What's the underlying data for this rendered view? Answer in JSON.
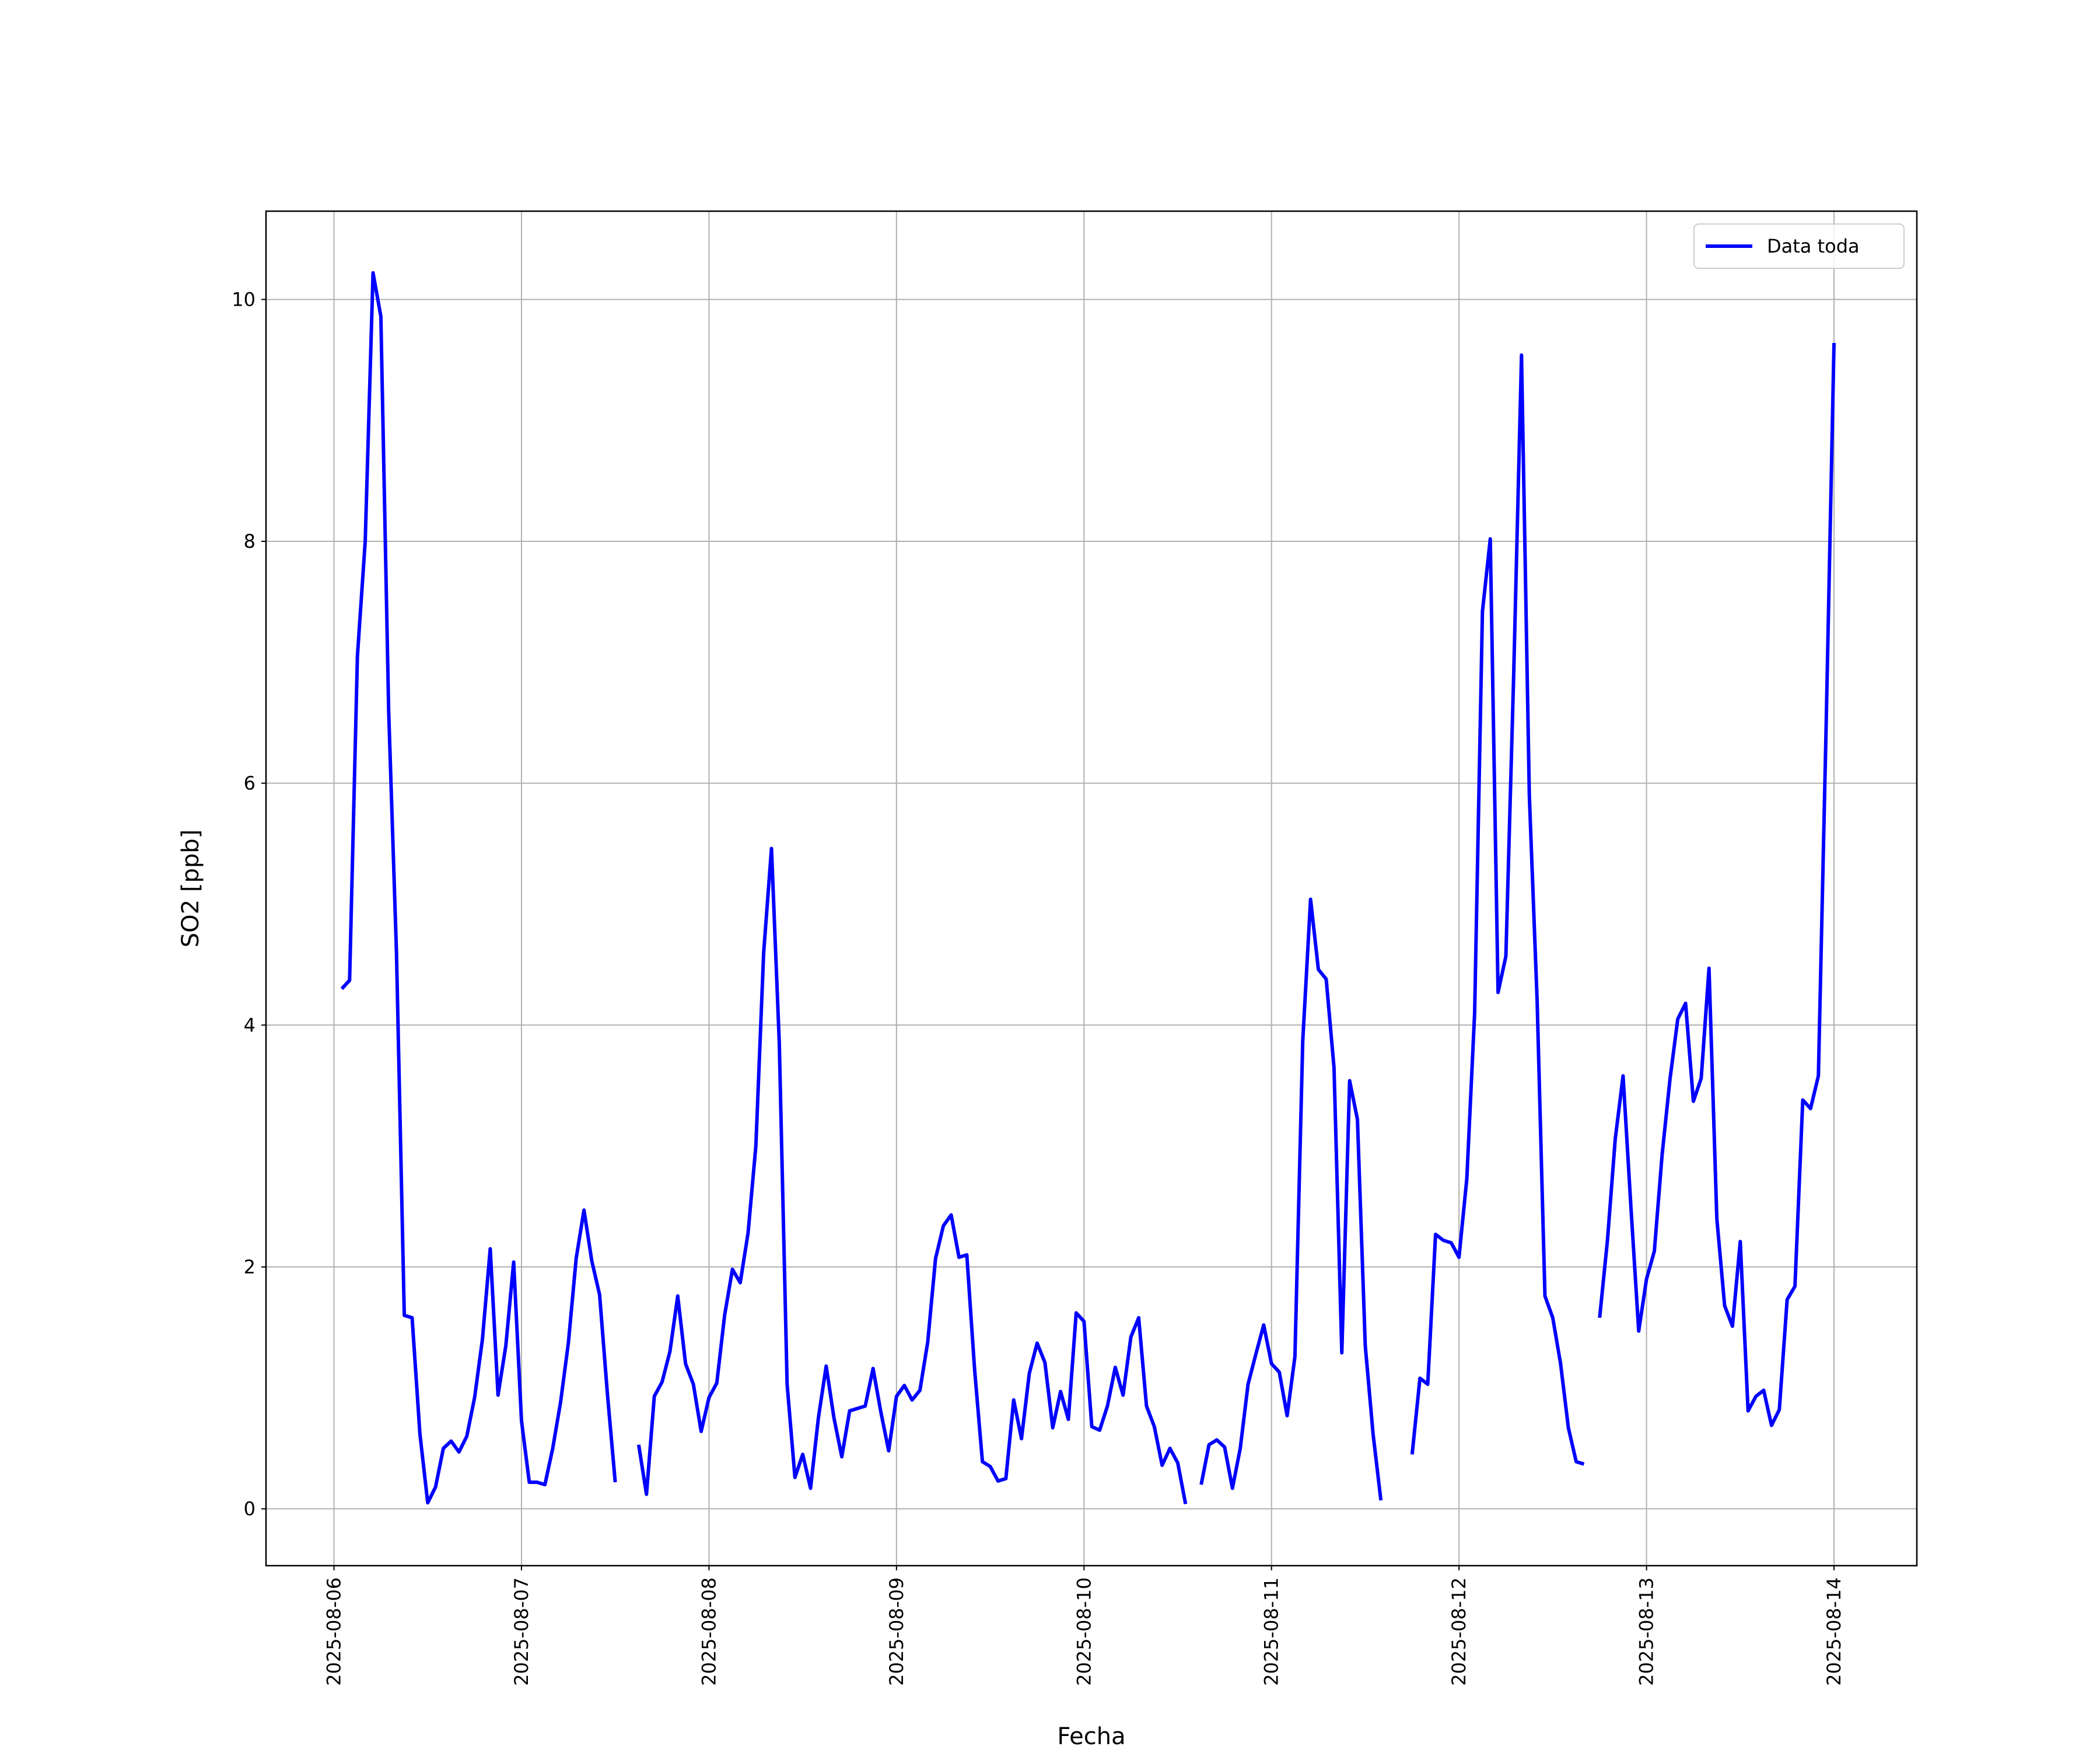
{
  "chart_data": {
    "type": "line",
    "x_label": "Fecha",
    "y_label": "SO2 [ppb]",
    "x": [
      "2025-08-06 01:00",
      "2025-08-06 02:00",
      "2025-08-06 03:00",
      "2025-08-06 04:00",
      "2025-08-06 05:00",
      "2025-08-06 06:00",
      "2025-08-06 07:00",
      "2025-08-06 08:00",
      "2025-08-06 09:00",
      "2025-08-06 10:00",
      "2025-08-06 11:00",
      "2025-08-06 12:00",
      "2025-08-06 13:00",
      "2025-08-06 14:00",
      "2025-08-06 15:00",
      "2025-08-06 16:00",
      "2025-08-06 17:00",
      "2025-08-06 18:00",
      "2025-08-06 19:00",
      "2025-08-06 20:00",
      "2025-08-06 21:00",
      "2025-08-06 22:00",
      "2025-08-06 23:00",
      "2025-08-07 00:00",
      "2025-08-07 01:00",
      "2025-08-07 02:00",
      "2025-08-07 03:00",
      "2025-08-07 04:00",
      "2025-08-07 05:00",
      "2025-08-07 06:00",
      "2025-08-07 07:00",
      "2025-08-07 08:00",
      "2025-08-07 09:00",
      "2025-08-07 10:00",
      "2025-08-07 11:00",
      "2025-08-07 12:00",
      "2025-08-07 13:00",
      "2025-08-07 14:00",
      "2025-08-07 15:00",
      "2025-08-07 16:00",
      "2025-08-07 17:00",
      "2025-08-07 18:00",
      "2025-08-07 19:00",
      "2025-08-07 20:00",
      "2025-08-07 21:00",
      "2025-08-07 22:00",
      "2025-08-07 23:00",
      "2025-08-08 00:00",
      "2025-08-08 01:00",
      "2025-08-08 02:00",
      "2025-08-08 03:00",
      "2025-08-08 04:00",
      "2025-08-08 05:00",
      "2025-08-08 06:00",
      "2025-08-08 07:00",
      "2025-08-08 08:00",
      "2025-08-08 09:00",
      "2025-08-08 10:00",
      "2025-08-08 11:00",
      "2025-08-08 12:00",
      "2025-08-08 13:00",
      "2025-08-08 14:00",
      "2025-08-08 15:00",
      "2025-08-08 16:00",
      "2025-08-08 17:00",
      "2025-08-08 18:00",
      "2025-08-08 19:00",
      "2025-08-08 20:00",
      "2025-08-08 21:00",
      "2025-08-08 22:00",
      "2025-08-08 23:00",
      "2025-08-09 00:00",
      "2025-08-09 01:00",
      "2025-08-09 02:00",
      "2025-08-09 03:00",
      "2025-08-09 04:00",
      "2025-08-09 05:00",
      "2025-08-09 06:00",
      "2025-08-09 07:00",
      "2025-08-09 08:00",
      "2025-08-09 09:00",
      "2025-08-09 10:00",
      "2025-08-09 11:00",
      "2025-08-09 12:00",
      "2025-08-09 13:00",
      "2025-08-09 14:00",
      "2025-08-09 15:00",
      "2025-08-09 16:00",
      "2025-08-09 17:00",
      "2025-08-09 18:00",
      "2025-08-09 19:00",
      "2025-08-09 20:00",
      "2025-08-09 21:00",
      "2025-08-09 22:00",
      "2025-08-09 23:00",
      "2025-08-10 00:00",
      "2025-08-10 01:00",
      "2025-08-10 02:00",
      "2025-08-10 03:00",
      "2025-08-10 04:00",
      "2025-08-10 05:00",
      "2025-08-10 06:00",
      "2025-08-10 07:00",
      "2025-08-10 08:00",
      "2025-08-10 09:00",
      "2025-08-10 10:00",
      "2025-08-10 11:00",
      "2025-08-10 12:00",
      "2025-08-10 13:00",
      "2025-08-10 14:00",
      "2025-08-10 15:00",
      "2025-08-10 16:00",
      "2025-08-10 17:00",
      "2025-08-10 18:00",
      "2025-08-10 19:00",
      "2025-08-10 20:00",
      "2025-08-10 21:00",
      "2025-08-10 22:00",
      "2025-08-10 23:00",
      "2025-08-11 00:00",
      "2025-08-11 01:00",
      "2025-08-11 02:00",
      "2025-08-11 03:00",
      "2025-08-11 04:00",
      "2025-08-11 05:00",
      "2025-08-11 06:00",
      "2025-08-11 07:00",
      "2025-08-11 08:00",
      "2025-08-11 09:00",
      "2025-08-11 10:00",
      "2025-08-11 11:00",
      "2025-08-11 12:00",
      "2025-08-11 13:00",
      "2025-08-11 14:00",
      "2025-08-11 15:00",
      "2025-08-11 16:00",
      "2025-08-11 17:00",
      "2025-08-11 18:00",
      "2025-08-11 19:00",
      "2025-08-11 20:00",
      "2025-08-11 21:00",
      "2025-08-11 22:00",
      "2025-08-11 23:00",
      "2025-08-12 00:00",
      "2025-08-12 01:00",
      "2025-08-12 02:00",
      "2025-08-12 03:00",
      "2025-08-12 04:00",
      "2025-08-12 05:00",
      "2025-08-12 06:00",
      "2025-08-12 07:00",
      "2025-08-12 08:00",
      "2025-08-12 09:00",
      "2025-08-12 10:00",
      "2025-08-12 11:00",
      "2025-08-12 12:00",
      "2025-08-12 13:00",
      "2025-08-12 14:00",
      "2025-08-12 15:00",
      "2025-08-12 16:00",
      "2025-08-12 17:00",
      "2025-08-12 18:00",
      "2025-08-12 19:00",
      "2025-08-12 20:00",
      "2025-08-12 21:00",
      "2025-08-12 22:00",
      "2025-08-12 23:00",
      "2025-08-13 00:00",
      "2025-08-13 01:00",
      "2025-08-13 02:00",
      "2025-08-13 03:00",
      "2025-08-13 04:00",
      "2025-08-13 05:00",
      "2025-08-13 06:00",
      "2025-08-13 07:00",
      "2025-08-13 08:00",
      "2025-08-13 09:00",
      "2025-08-13 10:00",
      "2025-08-13 11:00",
      "2025-08-13 12:00",
      "2025-08-13 13:00",
      "2025-08-13 14:00",
      "2025-08-13 15:00",
      "2025-08-13 16:00",
      "2025-08-13 17:00",
      "2025-08-13 18:00",
      "2025-08-13 19:00",
      "2025-08-13 20:00",
      "2025-08-13 21:00",
      "2025-08-13 22:00",
      "2025-08-13 23:00",
      "2025-08-14 00:00"
    ],
    "series": [
      {
        "name": "Data toda",
        "color": "#0000ff",
        "values": [
          4.3,
          4.37,
          7.05,
          8.0,
          10.22,
          9.86,
          6.6,
          4.6,
          1.6,
          1.58,
          0.62,
          0.05,
          0.18,
          0.5,
          0.56,
          0.47,
          0.6,
          0.92,
          1.4,
          2.15,
          0.94,
          1.35,
          2.04,
          0.73,
          0.22,
          0.22,
          0.2,
          0.5,
          0.88,
          1.37,
          2.07,
          2.47,
          2.05,
          1.77,
          0.95,
          0.22,
          null,
          null,
          0.53,
          0.12,
          0.93,
          1.05,
          1.3,
          1.76,
          1.2,
          1.03,
          0.64,
          0.92,
          1.04,
          1.6,
          1.98,
          1.87,
          2.28,
          3.0,
          4.6,
          5.46,
          3.85,
          1.03,
          0.26,
          0.45,
          0.17,
          0.75,
          1.18,
          0.75,
          0.43,
          0.81,
          0.83,
          0.85,
          1.16,
          0.8,
          0.48,
          0.93,
          1.02,
          0.9,
          0.98,
          1.38,
          2.07,
          2.34,
          2.43,
          2.08,
          2.1,
          1.15,
          0.39,
          0.35,
          0.23,
          0.25,
          0.9,
          0.58,
          1.12,
          1.37,
          1.21,
          0.67,
          0.97,
          0.74,
          1.62,
          1.55,
          0.68,
          0.65,
          0.85,
          1.17,
          0.94,
          1.42,
          1.58,
          0.85,
          0.68,
          0.36,
          0.5,
          0.38,
          0.04,
          null,
          0.2,
          0.53,
          0.57,
          0.51,
          0.17,
          0.5,
          1.03,
          1.28,
          1.52,
          1.2,
          1.13,
          0.77,
          1.26,
          3.87,
          5.04,
          4.46,
          4.38,
          3.65,
          1.29,
          3.54,
          3.22,
          1.35,
          0.62,
          0.07,
          null,
          null,
          null,
          0.45,
          1.08,
          1.03,
          2.27,
          2.22,
          2.2,
          2.08,
          2.73,
          4.1,
          7.42,
          8.02,
          4.27,
          4.57,
          6.9,
          9.54,
          5.9,
          4.2,
          1.76,
          1.58,
          1.2,
          0.67,
          0.39,
          0.37,
          null,
          1.58,
          2.22,
          3.06,
          3.58,
          2.5,
          1.47,
          1.9,
          2.13,
          2.93,
          3.55,
          4.05,
          4.18,
          3.37,
          3.56,
          4.47,
          2.4,
          1.68,
          1.51,
          2.21,
          0.81,
          0.93,
          0.98,
          0.69,
          0.82,
          1.73,
          1.84,
          3.38,
          3.31,
          3.58,
          6.5,
          9.64
        ]
      }
    ],
    "xlim": [
      "2025-08-05 15:18",
      "2025-08-14 10:36"
    ],
    "xticks": [
      "2025-08-06",
      "2025-08-07",
      "2025-08-08",
      "2025-08-09",
      "2025-08-10",
      "2025-08-11",
      "2025-08-12",
      "2025-08-13",
      "2025-08-14"
    ],
    "ylim": [
      -0.47,
      10.73
    ],
    "yticks": [
      0,
      2,
      4,
      6,
      8,
      10
    ],
    "grid": true,
    "legend": "upper right"
  }
}
